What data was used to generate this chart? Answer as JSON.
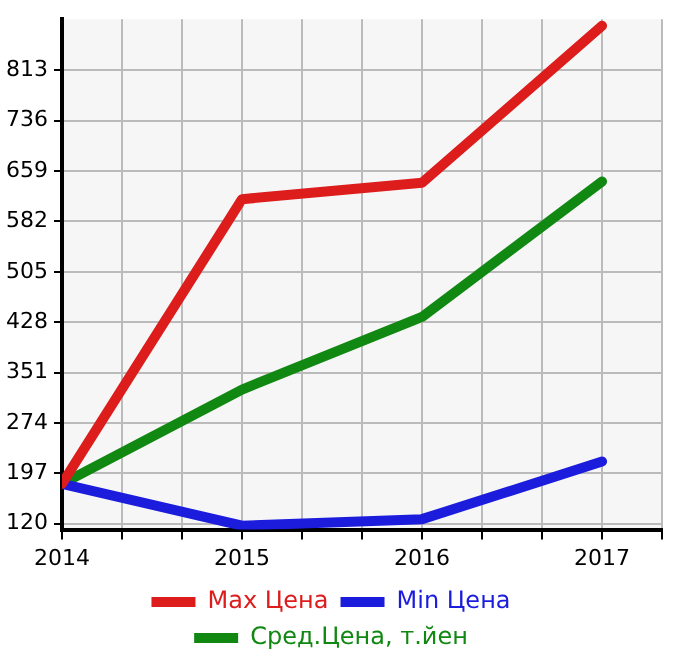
{
  "chart_data": {
    "type": "line",
    "x": [
      2014,
      2015,
      2016,
      2017
    ],
    "series": [
      {
        "name": "Max Цена",
        "color": "#dd1c1c",
        "values": [
          181,
          616,
          641,
          881
        ]
      },
      {
        "name": "Min Цена",
        "color": "#1c1cdd",
        "values": [
          181,
          117,
          127,
          215
        ]
      },
      {
        "name": "Сред.Цена, т.йен",
        "color": "#118811",
        "values": [
          181,
          325,
          436,
          643
        ]
      }
    ],
    "xlim": [
      2014,
      2017.333
    ],
    "xticks": [
      2014,
      {
        "value": 2014.333,
        "label": null
      },
      {
        "value": 2014.667,
        "label": null
      },
      2015,
      {
        "value": 2015.333,
        "label": null
      },
      {
        "value": 2015.667,
        "label": null
      },
      2016,
      {
        "value": 2016.333,
        "label": null
      },
      {
        "value": 2016.667,
        "label": null
      },
      2017,
      {
        "value": 2017.333,
        "label": null
      }
    ],
    "ylim": [
      111,
      891
    ],
    "yticks": [
      120,
      197,
      274,
      351,
      428,
      505,
      582,
      659,
      736,
      813
    ],
    "grid": true,
    "legend": "bottom",
    "marker": "none",
    "line_style": "solid"
  }
}
